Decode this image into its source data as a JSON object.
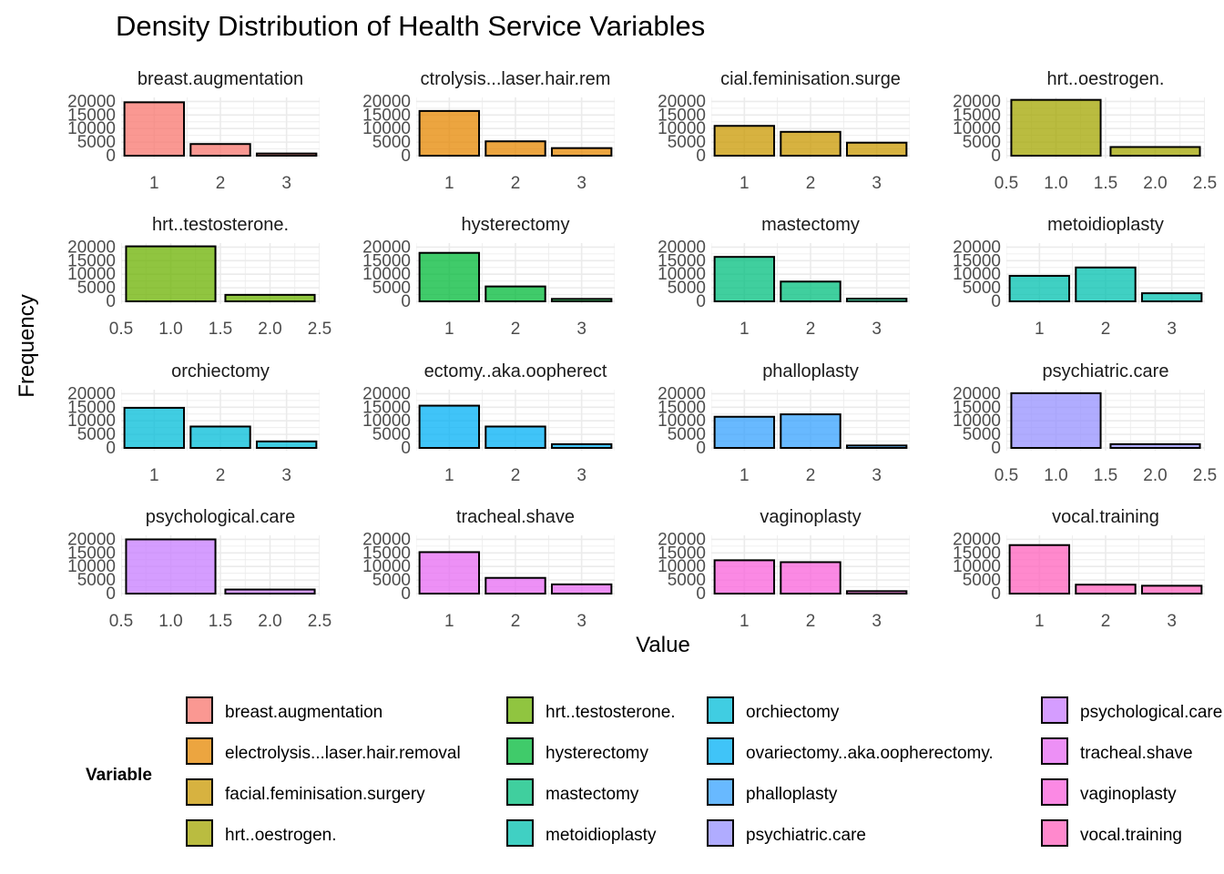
{
  "chart_data": {
    "type": "bar",
    "title": "Density Distribution of Health Service Variables",
    "xlabel": "Value",
    "ylabel": "Frequency",
    "y_ticks": [
      0,
      5000,
      10000,
      15000,
      20000
    ],
    "ylim": [
      0,
      20000
    ],
    "grid": true,
    "legend": {
      "title": "Variable",
      "position": "bottom",
      "columns": 4
    },
    "facets": [
      {
        "name": "breast.augmentation",
        "panel_title": "breast.augmentation",
        "color": "#F8766D",
        "x": [
          1,
          2,
          3
        ],
        "values": [
          19700,
          4300,
          800
        ],
        "xlim": [
          0.5,
          3.5
        ],
        "x_ticks": [
          "1",
          "2",
          "3"
        ]
      },
      {
        "name": "electrolysis...laser.hair.removal",
        "panel_title": "ctrolysis...laser.hair.rem",
        "color": "#E58700",
        "x": [
          1,
          2,
          3
        ],
        "values": [
          16500,
          5300,
          2800
        ],
        "xlim": [
          0.5,
          3.5
        ],
        "x_ticks": [
          "1",
          "2",
          "3"
        ]
      },
      {
        "name": "facial.feminisation.surgery",
        "panel_title": "cial.feminisation.surge",
        "color": "#C99800",
        "x": [
          1,
          2,
          3
        ],
        "values": [
          11000,
          8800,
          4800
        ],
        "xlim": [
          0.5,
          3.5
        ],
        "x_ticks": [
          "1",
          "2",
          "3"
        ]
      },
      {
        "name": "hrt..oestrogen.",
        "panel_title": "hrt..oestrogen.",
        "color": "#A3A500",
        "x": [
          1,
          2
        ],
        "values": [
          20600,
          3200
        ],
        "xlim": [
          0.5,
          2.5
        ],
        "x_ticks": [
          "0.5",
          "1.0",
          "1.5",
          "2.0",
          "2.5"
        ]
      },
      {
        "name": "hrt..testosterone.",
        "panel_title": "hrt..testosterone.",
        "color": "#6BB100",
        "x": [
          1,
          2
        ],
        "values": [
          20300,
          2400
        ],
        "xlim": [
          0.5,
          2.5
        ],
        "x_ticks": [
          "0.5",
          "1.0",
          "1.5",
          "2.0",
          "2.5"
        ]
      },
      {
        "name": "hysterectomy",
        "panel_title": "hysterectomy",
        "color": "#00BA38",
        "x": [
          1,
          2,
          3
        ],
        "values": [
          17900,
          5500,
          900
        ],
        "xlim": [
          0.5,
          3.5
        ],
        "x_ticks": [
          "1",
          "2",
          "3"
        ]
      },
      {
        "name": "mastectomy",
        "panel_title": "mastectomy",
        "color": "#00BF7D",
        "x": [
          1,
          2,
          3
        ],
        "values": [
          16400,
          7300,
          1000
        ],
        "xlim": [
          0.5,
          3.5
        ],
        "x_ticks": [
          "1",
          "2",
          "3"
        ]
      },
      {
        "name": "metoidioplasty",
        "panel_title": "metoidioplasty",
        "color": "#00C0AF",
        "x": [
          1,
          2,
          3
        ],
        "values": [
          9400,
          12500,
          3000
        ],
        "xlim": [
          0.5,
          3.5
        ],
        "x_ticks": [
          "1",
          "2",
          "3"
        ]
      },
      {
        "name": "orchiectomy",
        "panel_title": "orchiectomy",
        "color": "#00BCD8",
        "x": [
          1,
          2,
          3
        ],
        "values": [
          14800,
          7900,
          2400
        ],
        "xlim": [
          0.5,
          3.5
        ],
        "x_ticks": [
          "1",
          "2",
          "3"
        ]
      },
      {
        "name": "ovariectomy..aka.oopherectomy.",
        "panel_title": "ectomy..aka.oopherect",
        "color": "#00B0F6",
        "x": [
          1,
          2,
          3
        ],
        "values": [
          15600,
          7900,
          1400
        ],
        "xlim": [
          0.5,
          3.5
        ],
        "x_ticks": [
          "1",
          "2",
          "3"
        ]
      },
      {
        "name": "phalloplasty",
        "panel_title": "phalloplasty",
        "color": "#35A2FF",
        "x": [
          1,
          2,
          3
        ],
        "values": [
          11500,
          12400,
          900
        ],
        "xlim": [
          0.5,
          3.5
        ],
        "x_ticks": [
          "1",
          "2",
          "3"
        ]
      },
      {
        "name": "psychiatric.care",
        "panel_title": "psychiatric.care",
        "color": "#9590FF",
        "x": [
          1,
          2
        ],
        "values": [
          20200,
          1400
        ],
        "xlim": [
          0.5,
          2.5
        ],
        "x_ticks": [
          "0.5",
          "1.0",
          "1.5",
          "2.0",
          "2.5"
        ]
      },
      {
        "name": "psychological.care",
        "panel_title": "psychological.care",
        "color": "#C77CFF",
        "x": [
          1,
          2
        ],
        "values": [
          20000,
          1500
        ],
        "xlim": [
          0.5,
          2.5
        ],
        "x_ticks": [
          "0.5",
          "1.0",
          "1.5",
          "2.0",
          "2.5"
        ]
      },
      {
        "name": "tracheal.shave",
        "panel_title": "tracheal.shave",
        "color": "#E76BF3",
        "x": [
          1,
          2,
          3
        ],
        "values": [
          15300,
          5800,
          3400
        ],
        "xlim": [
          0.5,
          3.5
        ],
        "x_ticks": [
          "1",
          "2",
          "3"
        ]
      },
      {
        "name": "vaginoplasty",
        "panel_title": "vaginoplasty",
        "color": "#FA62DB",
        "x": [
          1,
          2,
          3
        ],
        "values": [
          12300,
          11600,
          900
        ],
        "xlim": [
          0.5,
          3.5
        ],
        "x_ticks": [
          "1",
          "2",
          "3"
        ]
      },
      {
        "name": "vocal.training",
        "panel_title": "vocal.training",
        "color": "#FF62BC",
        "x": [
          1,
          2,
          3
        ],
        "values": [
          17900,
          3300,
          2900
        ],
        "xlim": [
          0.5,
          3.5
        ],
        "x_ticks": [
          "1",
          "2",
          "3"
        ]
      }
    ]
  }
}
